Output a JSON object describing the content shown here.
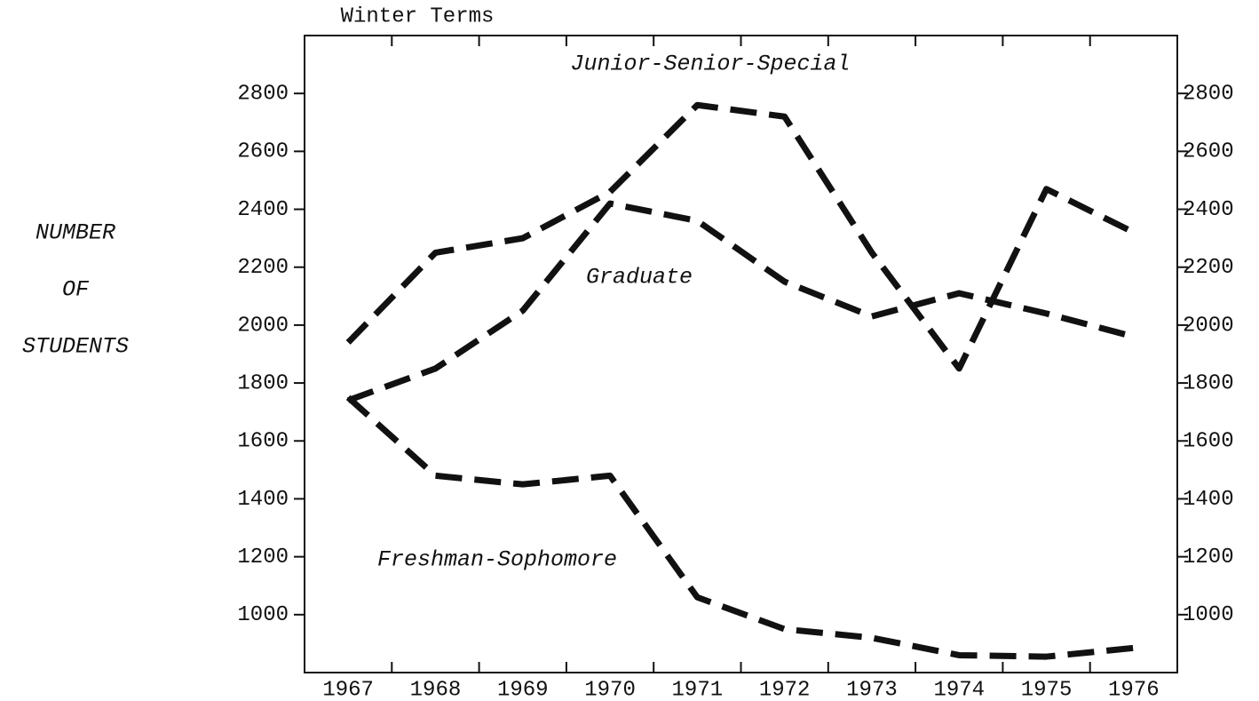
{
  "chart_data": {
    "type": "line",
    "title": "Winter Terms",
    "y_label": [
      "NUMBER",
      "OF",
      "STUDENTS"
    ],
    "categories": [
      "1967",
      "1968",
      "1969",
      "1970",
      "1971",
      "1972",
      "1973",
      "1974",
      "1975",
      "1976"
    ],
    "series": [
      {
        "name": "Junior-Senior-Special",
        "color": "#111111",
        "values": [
          1940,
          2250,
          2300,
          2460,
          2760,
          2720,
          2250,
          1850,
          2470,
          2320
        ]
      },
      {
        "name": "Graduate",
        "color": "#111111",
        "values": [
          1740,
          1850,
          2050,
          2420,
          2360,
          2150,
          2030,
          2110,
          2040,
          1960
        ]
      },
      {
        "name": "Freshman-Sophomore",
        "color": "#111111",
        "values": [
          1750,
          1480,
          1450,
          1480,
          1060,
          950,
          920,
          860,
          855,
          885
        ]
      }
    ],
    "ylim": [
      800,
      3000
    ],
    "yticks": [
      1000,
      1200,
      1400,
      1600,
      1800,
      2000,
      2200,
      2400,
      2600,
      2800
    ],
    "grid": false
  }
}
